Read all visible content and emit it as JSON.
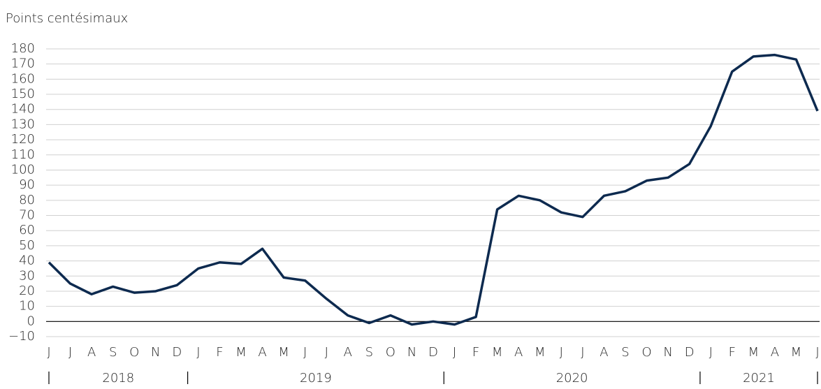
{
  "chart_data": {
    "type": "line",
    "title": "Points centésimaux",
    "categories": [
      "J",
      "J",
      "A",
      "S",
      "O",
      "N",
      "D",
      "J",
      "F",
      "M",
      "A",
      "M",
      "J",
      "J",
      "A",
      "S",
      "O",
      "N",
      "D",
      "J",
      "F",
      "M",
      "A",
      "M",
      "J",
      "J",
      "A",
      "S",
      "O",
      "N",
      "D",
      "J",
      "F",
      "M",
      "A",
      "M",
      "J"
    ],
    "year_groups": [
      {
        "name": "2018",
        "count": 7
      },
      {
        "name": "2019",
        "count": 12
      },
      {
        "name": "2020",
        "count": 12
      },
      {
        "name": "2021",
        "count": 6
      }
    ],
    "series": [
      {
        "name": "Points centésimaux",
        "color": "#0d2a4f",
        "values": [
          39,
          25,
          18,
          23,
          19,
          20,
          24,
          35,
          39,
          38,
          48,
          29,
          27,
          15,
          4,
          -1,
          4,
          -2,
          0,
          -2,
          3,
          74,
          83,
          80,
          72,
          69,
          83,
          86,
          93,
          95,
          104,
          129,
          165,
          175,
          176,
          173,
          139
        ]
      }
    ],
    "ylim": [
      -10,
      180
    ],
    "yticks": [
      {
        "value": -10,
        "label": "−10"
      },
      0,
      10,
      20,
      30,
      40,
      50,
      60,
      70,
      80,
      90,
      100,
      110,
      120,
      130,
      140,
      150,
      160,
      170,
      180
    ],
    "grid": true
  }
}
